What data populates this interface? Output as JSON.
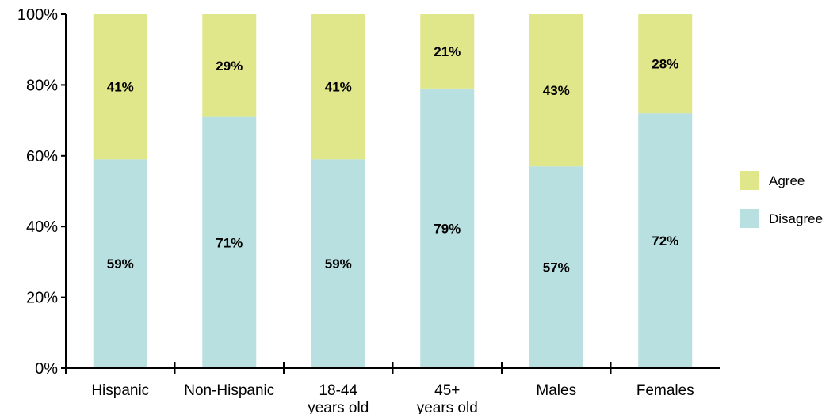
{
  "chart_data": {
    "type": "bar",
    "stacked": true,
    "percent_scale": true,
    "categories": [
      [
        "Hispanic"
      ],
      [
        "Non-Hispanic"
      ],
      [
        "18-44",
        "years old"
      ],
      [
        "45+",
        "years old"
      ],
      [
        "Males"
      ],
      [
        "Females"
      ]
    ],
    "series": [
      {
        "name": "Disagree",
        "values": [
          59,
          71,
          59,
          79,
          57,
          72
        ],
        "labels": [
          "59%",
          "71%",
          "59%",
          "79%",
          "57%",
          "72%"
        ],
        "color": "#b8e0e0"
      },
      {
        "name": "Agree",
        "values": [
          41,
          29,
          41,
          21,
          43,
          28
        ],
        "labels": [
          "41%",
          "29%",
          "41%",
          "21%",
          "43%",
          "28%"
        ],
        "color": "#e0e68a"
      }
    ],
    "ylim": [
      0,
      100
    ],
    "yticks": [
      0,
      20,
      40,
      60,
      80,
      100
    ],
    "ytick_labels": [
      "0%",
      "20%",
      "40%",
      "60%",
      "80%",
      "100%"
    ],
    "legend": {
      "placement": "right",
      "entries": [
        {
          "name": "Agree",
          "color": "#e0e68a"
        },
        {
          "name": "Disagree",
          "color": "#b8e0e0"
        }
      ]
    },
    "grid": false,
    "title": "",
    "xlabel": "",
    "ylabel": ""
  }
}
